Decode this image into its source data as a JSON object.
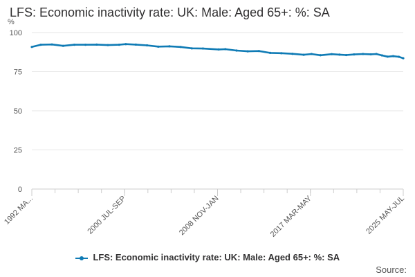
{
  "chart_data": {
    "type": "line",
    "title": "LFS: Economic inactivity rate: UK: Male: Aged 65+: %: SA",
    "ylabel": "%",
    "xlabel": "",
    "ylim": [
      0,
      100
    ],
    "yticks": [
      0,
      25,
      50,
      75,
      100
    ],
    "x_tick_labels": [
      "1992 MA...",
      "2000 JUL-SEP",
      "2008 NOV-JAN",
      "2017 MAR-MAY",
      "2025 MAY-JUL"
    ],
    "grid": true,
    "legend_position": "bottom",
    "series": [
      {
        "name": "LFS: Economic inactivity rate: UK: Male: Aged 65+: %: SA",
        "color": "#0f7bb5",
        "x": [
          1992.2,
          1993.0,
          1994.0,
          1995.0,
          1996.0,
          1997.0,
          1998.0,
          1999.0,
          2000.0,
          2000.6,
          2001.5,
          2002.5,
          2003.5,
          2004.5,
          2005.5,
          2006.5,
          2007.5,
          2008.9,
          2009.5,
          2010.5,
          2011.5,
          2012.5,
          2013.5,
          2014.5,
          2015.5,
          2016.5,
          2017.2,
          2018.0,
          2019.0,
          2019.7,
          2020.3,
          2021.0,
          2021.8,
          2022.5,
          2023.0,
          2023.5,
          2024.0,
          2024.5,
          2025.0,
          2025.4
        ],
        "values": [
          90.8,
          92.2,
          92.4,
          91.5,
          92.2,
          92.2,
          92.3,
          92.0,
          92.2,
          92.6,
          92.3,
          91.8,
          91.0,
          91.2,
          90.8,
          89.9,
          89.8,
          89.2,
          89.4,
          88.5,
          88.0,
          88.2,
          87.0,
          86.8,
          86.4,
          85.8,
          86.3,
          85.5,
          86.2,
          85.9,
          85.6,
          86.0,
          86.3,
          86.1,
          86.3,
          85.4,
          84.6,
          84.9,
          84.5,
          83.6
        ]
      }
    ]
  },
  "legend": {
    "label": "LFS: Economic inactivity rate: UK: Male: Aged 65+: %: SA"
  },
  "footer": {
    "source_label": "Source:"
  }
}
